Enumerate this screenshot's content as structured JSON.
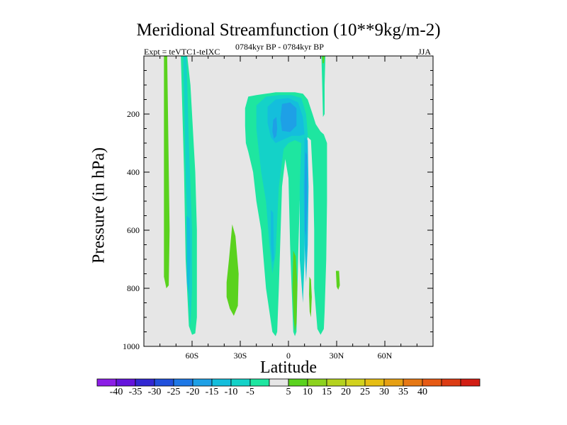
{
  "title": "Meridional Streamfunction (10**9kg/m-2)",
  "expt_label": "Expt = teVTC1-teIXC",
  "period_label": "0784kyr BP - 0784kyr BP",
  "season": "JJA",
  "chart_data": {
    "type": "heatmap",
    "title": "Meridional Streamfunction (10**9kg/m-2)",
    "xlabel": "Latitude",
    "ylabel": "Pressure (in hPa)",
    "xlim": [
      -90,
      90
    ],
    "ylim": [
      0,
      1000
    ],
    "y_inverted": true,
    "x_ticks": [
      {
        "value": -60,
        "label": "60S"
      },
      {
        "value": -30,
        "label": "30S"
      },
      {
        "value": 0,
        "label": "0"
      },
      {
        "value": 30,
        "label": "30N"
      },
      {
        "value": 60,
        "label": "60N"
      }
    ],
    "y_ticks": [
      {
        "value": 200,
        "label": "200"
      },
      {
        "value": 400,
        "label": "400"
      },
      {
        "value": 600,
        "label": "600"
      },
      {
        "value": 800,
        "label": "800"
      },
      {
        "value": 1000,
        "label": "1000"
      }
    ],
    "background_color": "#e6e6e6",
    "colorbar": {
      "colors": [
        "#8c1ee6",
        "#6414dc",
        "#3228d2",
        "#2050dc",
        "#1e78e6",
        "#1ea0e6",
        "#14bedc",
        "#14d2c8",
        "#1ee6a0",
        "#e6e6e6",
        "#5ad21e",
        "#8cd21e",
        "#b4d21e",
        "#d2d21e",
        "#e6be14",
        "#e6a014",
        "#e67814",
        "#e65a14",
        "#dc3c14",
        "#d21e14"
      ],
      "labels": [
        "-40",
        "-35",
        "-30",
        "-25",
        "-20",
        "-15",
        "-10",
        "-5",
        "5",
        "10",
        "15",
        "20",
        "25",
        "30",
        "35",
        "40"
      ],
      "label_after_box": [
        1,
        2,
        3,
        4,
        5,
        6,
        7,
        8,
        10,
        11,
        12,
        13,
        14,
        15,
        16,
        17
      ]
    },
    "regions": [
      {
        "name": "sh-high-lat-plus5",
        "level": "5",
        "color": "#5ad21e",
        "polygon": [
          [
            -77.5,
            0
          ],
          [
            -75.5,
            0
          ],
          [
            -74,
            600
          ],
          [
            -74.5,
            790
          ],
          [
            -76,
            800
          ],
          [
            -77.5,
            760
          ],
          [
            -77.5,
            400
          ]
        ]
      },
      {
        "name": "sh-midlat-minus5",
        "level": "-5",
        "color": "#1ee6a0",
        "polygon": [
          [
            -67,
            0
          ],
          [
            -63,
            0
          ],
          [
            -61,
            100
          ],
          [
            -58,
            400
          ],
          [
            -57,
            600
          ],
          [
            -57,
            900
          ],
          [
            -58,
            955
          ],
          [
            -60,
            960
          ],
          [
            -62,
            930
          ],
          [
            -64,
            700
          ],
          [
            -65,
            400
          ],
          [
            -66.5,
            100
          ]
        ]
      },
      {
        "name": "sh-midlat-minus10",
        "level": "-10",
        "color": "#14d2c8",
        "polygon": [
          [
            -65.5,
            0
          ],
          [
            -63.5,
            0
          ],
          [
            -62,
            300
          ],
          [
            -60,
            600
          ],
          [
            -60,
            800
          ],
          [
            -61,
            930
          ],
          [
            -62.5,
            800
          ],
          [
            -63,
            600
          ],
          [
            -64,
            400
          ]
        ]
      },
      {
        "name": "sh-midlat-minus15",
        "level": "-15",
        "color": "#14bedc",
        "polygon": [
          [
            -63.5,
            550
          ],
          [
            -61.5,
            560
          ],
          [
            -61,
            700
          ],
          [
            -62,
            820
          ],
          [
            -63.2,
            780
          ]
        ]
      },
      {
        "name": "sh-subtrop-plus5",
        "level": "5",
        "color": "#5ad21e",
        "polygon": [
          [
            -38.5,
            780
          ],
          [
            -37,
            700
          ],
          [
            -35,
            580
          ],
          [
            -33,
            620
          ],
          [
            -31,
            750
          ],
          [
            -31.5,
            860
          ],
          [
            -34,
            895
          ],
          [
            -36.5,
            870
          ],
          [
            -38.5,
            830
          ]
        ]
      },
      {
        "name": "tropics-minus5",
        "level": "-5",
        "color": "#1ee6a0",
        "polygon": [
          [
            -27,
            180
          ],
          [
            -25,
            140
          ],
          [
            -20,
            135
          ],
          [
            -14,
            130
          ],
          [
            -8,
            125
          ],
          [
            -2,
            125
          ],
          [
            4,
            125
          ],
          [
            9,
            130
          ],
          [
            12,
            150
          ],
          [
            15,
            200
          ],
          [
            17,
            235
          ],
          [
            20,
            260
          ],
          [
            22,
            270
          ],
          [
            24,
            300
          ],
          [
            24,
            500
          ],
          [
            23.5,
            700
          ],
          [
            22.5,
            880
          ],
          [
            22,
            940
          ],
          [
            20,
            960
          ],
          [
            18,
            940
          ],
          [
            16,
            800
          ],
          [
            16,
            600
          ],
          [
            15.5,
            450
          ],
          [
            14,
            290
          ],
          [
            12,
            280
          ],
          [
            10,
            290
          ],
          [
            9,
            350
          ],
          [
            7,
            500
          ],
          [
            6,
            700
          ],
          [
            5,
            950
          ],
          [
            4,
            965
          ],
          [
            3,
            950
          ],
          [
            2,
            800
          ],
          [
            1,
            650
          ],
          [
            0.5,
            530
          ],
          [
            0,
            420
          ],
          [
            -2,
            355
          ],
          [
            -4,
            450
          ],
          [
            -6,
            800
          ],
          [
            -7,
            950
          ],
          [
            -8,
            965
          ],
          [
            -10,
            950
          ],
          [
            -14,
            800
          ],
          [
            -17,
            600
          ],
          [
            -20,
            500
          ],
          [
            -22,
            400
          ],
          [
            -25,
            330
          ],
          [
            -26.5,
            300
          ],
          [
            -27,
            240
          ]
        ]
      },
      {
        "name": "tropics-minus10",
        "level": "-10",
        "color": "#14d2c8",
        "polygon": [
          [
            -20,
            170
          ],
          [
            -14,
            140
          ],
          [
            -6,
            135
          ],
          [
            2,
            135
          ],
          [
            8,
            145
          ],
          [
            11,
            200
          ],
          [
            12,
            270
          ],
          [
            10,
            400
          ],
          [
            10,
            700
          ],
          [
            9,
            850
          ],
          [
            7,
            700
          ],
          [
            7,
            450
          ],
          [
            8,
            300
          ],
          [
            4,
            290
          ],
          [
            0,
            300
          ],
          [
            -3,
            320
          ],
          [
            -6,
            450
          ],
          [
            -8,
            680
          ],
          [
            -10,
            750
          ],
          [
            -12,
            640
          ],
          [
            -14,
            500
          ],
          [
            -17,
            400
          ],
          [
            -19,
            300
          ],
          [
            -20,
            250
          ]
        ]
      },
      {
        "name": "tropics-minus15",
        "level": "-15",
        "color": "#14bedc",
        "polygon": [
          [
            -13,
            175
          ],
          [
            -8,
            150
          ],
          [
            0,
            145
          ],
          [
            6,
            160
          ],
          [
            9,
            210
          ],
          [
            10,
            270
          ],
          [
            7,
            275
          ],
          [
            2,
            275
          ],
          [
            -4,
            290
          ],
          [
            -8,
            300
          ],
          [
            -11,
            280
          ],
          [
            -13,
            230
          ]
        ]
      },
      {
        "name": "tropics-minus15-lower",
        "level": "-15",
        "color": "#14bedc",
        "polygon": [
          [
            10,
            280
          ],
          [
            12,
            290
          ],
          [
            12.5,
            450
          ],
          [
            12,
            650
          ],
          [
            11,
            780
          ],
          [
            10,
            650
          ],
          [
            9.5,
            450
          ]
        ]
      },
      {
        "name": "tropics-minus20",
        "level": "-20",
        "color": "#1ea0e6",
        "polygon": [
          [
            -4,
            165
          ],
          [
            1,
            160
          ],
          [
            5,
            180
          ],
          [
            5,
            240
          ],
          [
            1,
            262
          ],
          [
            -4,
            258
          ],
          [
            -5,
            215
          ]
        ]
      },
      {
        "name": "tropics-minus20-sw",
        "level": "-20",
        "color": "#1ea0e6",
        "polygon": [
          [
            -9.5,
            220
          ],
          [
            -7.5,
            210
          ],
          [
            -7,
            250
          ],
          [
            -7.5,
            275
          ],
          [
            -9,
            285
          ],
          [
            -10,
            260
          ]
        ]
      },
      {
        "name": "trop-vertical-minus20",
        "level": "-20",
        "color": "#1ea0e6",
        "polygon": [
          [
            10.5,
            330
          ],
          [
            11.5,
            340
          ],
          [
            11.5,
            500
          ],
          [
            11,
            620
          ],
          [
            10.2,
            600
          ],
          [
            10,
            450
          ]
        ]
      },
      {
        "name": "sh-tropic-midlevel-minus15",
        "level": "-15",
        "color": "#14bedc",
        "polygon": [
          [
            -11,
            530
          ],
          [
            -9.5,
            540
          ],
          [
            -9,
            700
          ],
          [
            -10,
            710
          ],
          [
            -11,
            650
          ]
        ]
      },
      {
        "name": "nh-sub-plus5",
        "level": "5",
        "color": "#5ad21e",
        "polygon": [
          [
            3,
            670
          ],
          [
            4.5,
            690
          ],
          [
            5.5,
            790
          ],
          [
            5,
            920
          ],
          [
            4,
            950
          ],
          [
            3.2,
            900
          ],
          [
            2.5,
            800
          ]
        ]
      },
      {
        "name": "nh-sub-plus5-small",
        "level": "5",
        "color": "#5ad21e",
        "polygon": [
          [
            13,
            760
          ],
          [
            14,
            770
          ],
          [
            14.5,
            830
          ],
          [
            14,
            900
          ],
          [
            13.2,
            880
          ],
          [
            12.8,
            820
          ]
        ]
      },
      {
        "name": "nh-upper-minus5",
        "level": "-5",
        "color": "#1ee6a0",
        "polygon": [
          [
            20.5,
            0
          ],
          [
            23,
            0
          ],
          [
            22.5,
            100
          ],
          [
            22.5,
            200
          ],
          [
            21.5,
            210
          ],
          [
            21,
            100
          ]
        ]
      },
      {
        "name": "nh-upper-plus5",
        "level": "5",
        "color": "#5ad21e",
        "polygon": [
          [
            21,
            0
          ],
          [
            22.5,
            0
          ],
          [
            22,
            25
          ],
          [
            21.2,
            25
          ]
        ]
      },
      {
        "name": "nh-30n-plus5",
        "level": "5",
        "color": "#5ad21e",
        "polygon": [
          [
            29.5,
            740
          ],
          [
            31.5,
            740
          ],
          [
            32,
            790
          ],
          [
            31,
            805
          ],
          [
            30,
            795
          ]
        ]
      }
    ]
  }
}
